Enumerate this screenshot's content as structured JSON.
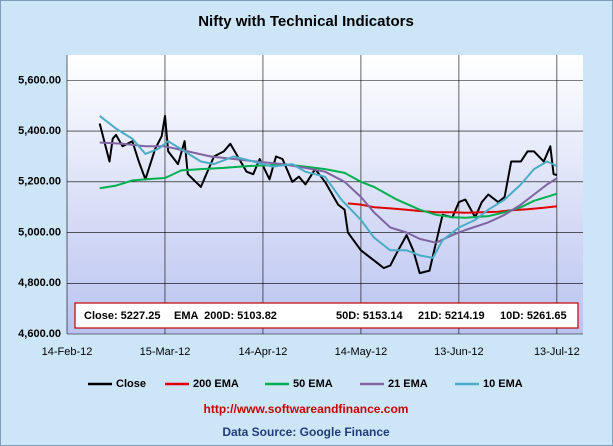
{
  "chart_data": {
    "type": "line",
    "title": "Nifty with Technical Indicators",
    "annotation": [
      "Close: 5227.25",
      "EMA  200D: 5103.82",
      "50D: 5153.14",
      "21D: 5214.19",
      "10D: 5261.65"
    ],
    "footer_url": "http://www.softwareandfinance.com",
    "footer_source": "Data Source: Google Finance",
    "xlim": [
      "2012-02-14",
      "2012-07-21"
    ],
    "xticks": [
      {
        "value": "2012-02-14",
        "label": "14-Feb-12"
      },
      {
        "value": "2012-03-15",
        "label": "15-Mar-12"
      },
      {
        "value": "2012-04-14",
        "label": "14-Apr-12"
      },
      {
        "value": "2012-05-14",
        "label": "14-May-12"
      },
      {
        "value": "2012-06-13",
        "label": "13-Jun-12"
      },
      {
        "value": "2012-07-13",
        "label": "13-Jul-12"
      }
    ],
    "ylim": [
      4600,
      5700
    ],
    "yticks": [
      {
        "value": 4600,
        "label": "4,600.00"
      },
      {
        "value": 4800,
        "label": "4,800.00"
      },
      {
        "value": 5000,
        "label": "5,000.00"
      },
      {
        "value": 5200,
        "label": "5,200.00"
      },
      {
        "value": 5400,
        "label": "5,400.00"
      },
      {
        "value": 5600,
        "label": "5,600.00"
      }
    ],
    "grid": true,
    "legend": "bottom",
    "series": [
      {
        "name": "Close",
        "color": "#000000",
        "x": [
          "2012-02-24",
          "2012-02-27",
          "2012-02-28",
          "2012-02-29",
          "2012-03-02",
          "2012-03-05",
          "2012-03-07",
          "2012-03-09",
          "2012-03-12",
          "2012-03-14",
          "2012-03-15",
          "2012-03-16",
          "2012-03-19",
          "2012-03-21",
          "2012-03-22",
          "2012-03-26",
          "2012-03-28",
          "2012-03-30",
          "2012-04-02",
          "2012-04-04",
          "2012-04-09",
          "2012-04-11",
          "2012-04-13",
          "2012-04-16",
          "2012-04-18",
          "2012-04-20",
          "2012-04-23",
          "2012-04-25",
          "2012-04-27",
          "2012-04-30",
          "2012-05-03",
          "2012-05-07",
          "2012-05-09",
          "2012-05-10",
          "2012-05-14",
          "2012-05-16",
          "2012-05-18",
          "2012-05-21",
          "2012-05-23",
          "2012-05-25",
          "2012-05-28",
          "2012-05-30",
          "2012-06-01",
          "2012-06-04",
          "2012-06-06",
          "2012-06-08",
          "2012-06-11",
          "2012-06-13",
          "2012-06-15",
          "2012-06-18",
          "2012-06-20",
          "2012-06-22",
          "2012-06-25",
          "2012-06-27",
          "2012-06-29",
          "2012-07-02",
          "2012-07-04",
          "2012-07-06",
          "2012-07-09",
          "2012-07-11",
          "2012-07-12",
          "2012-07-13"
        ],
        "values": [
          5430,
          5280,
          5370,
          5385,
          5340,
          5360,
          5280,
          5210,
          5330,
          5380,
          5460,
          5320,
          5270,
          5360,
          5230,
          5180,
          5240,
          5300,
          5320,
          5350,
          5240,
          5230,
          5290,
          5210,
          5300,
          5290,
          5200,
          5220,
          5190,
          5250,
          5200,
          5110,
          5090,
          5000,
          4930,
          4910,
          4890,
          4860,
          4870,
          4920,
          4990,
          4930,
          4840,
          4850,
          4960,
          5070,
          5060,
          5120,
          5130,
          5060,
          5120,
          5150,
          5120,
          5140,
          5280,
          5280,
          5320,
          5320,
          5280,
          5340,
          5230,
          5227
        ]
      },
      {
        "name": "200 EMA",
        "color": "#e00000",
        "x": [
          "2012-05-10",
          "2012-05-14",
          "2012-05-18",
          "2012-05-23",
          "2012-05-28",
          "2012-06-01",
          "2012-06-06",
          "2012-06-11",
          "2012-06-15",
          "2012-06-20",
          "2012-06-25",
          "2012-06-29",
          "2012-07-04",
          "2012-07-09",
          "2012-07-13"
        ],
        "values": [
          5115,
          5110,
          5100,
          5095,
          5090,
          5085,
          5080,
          5080,
          5078,
          5080,
          5082,
          5088,
          5092,
          5098,
          5104
        ]
      },
      {
        "name": "50 EMA",
        "color": "#00b050",
        "x": [
          "2012-02-24",
          "2012-02-29",
          "2012-03-05",
          "2012-03-09",
          "2012-03-15",
          "2012-03-20",
          "2012-03-26",
          "2012-04-02",
          "2012-04-09",
          "2012-04-16",
          "2012-04-20",
          "2012-04-27",
          "2012-05-03",
          "2012-05-09",
          "2012-05-14",
          "2012-05-18",
          "2012-05-25",
          "2012-06-01",
          "2012-06-06",
          "2012-06-11",
          "2012-06-15",
          "2012-06-22",
          "2012-06-27",
          "2012-07-02",
          "2012-07-06",
          "2012-07-11",
          "2012-07-13"
        ],
        "values": [
          5175,
          5185,
          5205,
          5210,
          5215,
          5245,
          5250,
          5255,
          5262,
          5265,
          5270,
          5260,
          5250,
          5235,
          5200,
          5180,
          5130,
          5090,
          5070,
          5060,
          5058,
          5065,
          5080,
          5100,
          5125,
          5145,
          5153
        ]
      },
      {
        "name": "21 EMA",
        "color": "#8064a2",
        "x": [
          "2012-02-24",
          "2012-03-02",
          "2012-03-09",
          "2012-03-15",
          "2012-03-22",
          "2012-03-29",
          "2012-04-05",
          "2012-04-12",
          "2012-04-20",
          "2012-04-27",
          "2012-05-03",
          "2012-05-09",
          "2012-05-14",
          "2012-05-18",
          "2012-05-23",
          "2012-05-28",
          "2012-06-01",
          "2012-06-06",
          "2012-06-11",
          "2012-06-15",
          "2012-06-22",
          "2012-06-27",
          "2012-07-02",
          "2012-07-06",
          "2012-07-10",
          "2012-07-13"
        ],
        "values": [
          5355,
          5350,
          5340,
          5340,
          5320,
          5300,
          5290,
          5280,
          5270,
          5255,
          5240,
          5200,
          5140,
          5080,
          5020,
          5000,
          4975,
          4960,
          4990,
          5010,
          5040,
          5070,
          5110,
          5150,
          5190,
          5214
        ]
      },
      {
        "name": "10 EMA",
        "color": "#4bacc6",
        "x": [
          "2012-02-24",
          "2012-02-29",
          "2012-03-05",
          "2012-03-09",
          "2012-03-13",
          "2012-03-16",
          "2012-03-21",
          "2012-03-26",
          "2012-03-30",
          "2012-04-05",
          "2012-04-11",
          "2012-04-17",
          "2012-04-23",
          "2012-04-27",
          "2012-05-03",
          "2012-05-08",
          "2012-05-14",
          "2012-05-18",
          "2012-05-23",
          "2012-05-28",
          "2012-06-01",
          "2012-06-05",
          "2012-06-08",
          "2012-06-13",
          "2012-06-18",
          "2012-06-22",
          "2012-06-27",
          "2012-07-02",
          "2012-07-06",
          "2012-07-10",
          "2012-07-13"
        ],
        "values": [
          5460,
          5410,
          5370,
          5310,
          5330,
          5360,
          5320,
          5280,
          5270,
          5300,
          5280,
          5260,
          5270,
          5240,
          5220,
          5130,
          5050,
          4980,
          4930,
          4930,
          4910,
          4900,
          4970,
          5020,
          5050,
          5090,
          5130,
          5190,
          5250,
          5280,
          5262
        ]
      }
    ]
  }
}
